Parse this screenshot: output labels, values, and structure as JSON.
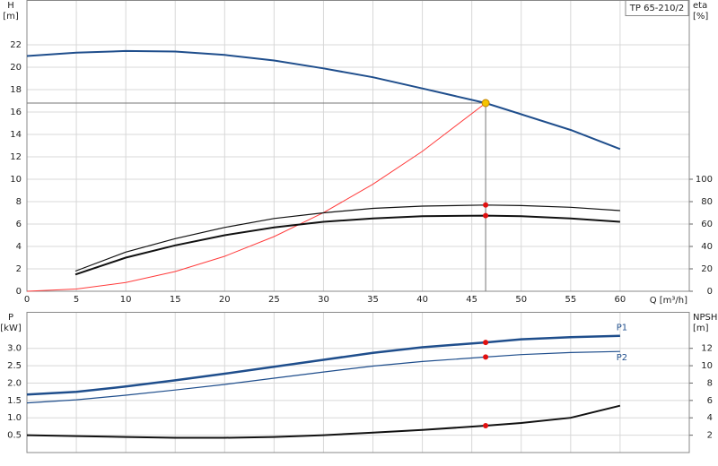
{
  "chart_data": [
    {
      "type": "line",
      "title": "TP 65-210/2",
      "y_label": [
        "H",
        "[m]"
      ],
      "y2_label": [
        "eta",
        "[%]"
      ],
      "x_label": "Q [m³/h]",
      "xlim": [
        0,
        67
      ],
      "xticks": [
        0,
        5,
        10,
        15,
        20,
        25,
        30,
        35,
        40,
        45,
        50,
        55,
        60
      ],
      "xtick_labels": true,
      "ylim": [
        0,
        26
      ],
      "yticks": [
        0,
        2,
        4,
        6,
        8,
        10,
        12,
        14,
        16,
        18,
        20,
        22
      ],
      "y2lim": [
        0,
        260
      ],
      "y2ticks": [
        0,
        20,
        40,
        60,
        80,
        100
      ],
      "grid": true,
      "series": [
        {
          "color": "#1f4e8c",
          "line_width": 2,
          "axis": "y",
          "x": [
            0,
            5,
            10,
            15,
            20,
            25,
            30,
            35,
            40,
            46.4,
            50,
            55,
            60
          ],
          "values": [
            21.0,
            21.3,
            21.45,
            21.4,
            21.1,
            20.6,
            19.9,
            19.1,
            18.1,
            16.8,
            15.8,
            14.4,
            12.7
          ]
        },
        {
          "color": "#ff3b3b",
          "line_width": 1,
          "axis": "y",
          "x": [
            0,
            5,
            10,
            15,
            20,
            25,
            30,
            35,
            40,
            46.4
          ],
          "values": [
            0,
            0.2,
            0.78,
            1.76,
            3.12,
            4.88,
            7.02,
            9.55,
            12.49,
            16.8
          ]
        },
        {
          "color": "#111111",
          "line_width": 1.2,
          "axis": "y2",
          "x": [
            4.9,
            10,
            15,
            20,
            25,
            30,
            35,
            40,
            46.4,
            50,
            55,
            60
          ],
          "values": [
            18,
            35,
            47,
            57,
            65,
            70,
            74,
            76,
            77,
            76.5,
            75,
            72
          ]
        },
        {
          "color": "#111111",
          "line_width": 2,
          "axis": "y2",
          "x": [
            4.9,
            10,
            15,
            20,
            25,
            30,
            35,
            40,
            46.4,
            50,
            55,
            60
          ],
          "values": [
            15,
            30,
            41,
            50,
            57,
            62,
            65,
            67,
            67.5,
            67,
            65,
            62
          ]
        }
      ],
      "markers": [
        {
          "x": 46.4,
          "y": 16.8,
          "axis": "y",
          "color": "#f5c400",
          "crosshair": true
        },
        {
          "x": 46.4,
          "y": 77,
          "axis": "y2",
          "color": "#e01010",
          "crosshair": false
        },
        {
          "x": 46.4,
          "y": 67.5,
          "axis": "y2",
          "color": "#e01010",
          "crosshair": false
        }
      ]
    },
    {
      "type": "line",
      "y_label": [
        "P",
        "[kW]"
      ],
      "y2_label": [
        "NPSH",
        "[m]"
      ],
      "xlim": [
        0,
        67
      ],
      "xticks": [
        0,
        5,
        10,
        15,
        20,
        25,
        30,
        35,
        40,
        45,
        50,
        55,
        60
      ],
      "xtick_labels": false,
      "ylim": [
        0,
        4.05
      ],
      "yticks": [
        0.5,
        {
          "value": 1,
          "label": "1.0"
        },
        1.5,
        {
          "value": 2,
          "label": "2.0"
        },
        2.5,
        {
          "value": 3,
          "label": "3.0"
        }
      ],
      "y2lim": [
        0,
        16.2
      ],
      "y2ticks": [
        2,
        4,
        6,
        8,
        10,
        12
      ],
      "grid": true,
      "series": [
        {
          "name": "P1",
          "label_pos": "above",
          "color": "#1f4e8c",
          "line_width": 2.5,
          "axis": "y",
          "x": [
            0,
            5,
            10,
            15,
            20,
            25,
            30,
            35,
            40,
            46.4,
            50,
            55,
            60
          ],
          "values": [
            1.67,
            1.75,
            1.9,
            2.08,
            2.27,
            2.47,
            2.67,
            2.87,
            3.03,
            3.17,
            3.26,
            3.32,
            3.36
          ]
        },
        {
          "name": "P2",
          "label_pos": "below",
          "color": "#1f4e8c",
          "line_width": 1.2,
          "axis": "y",
          "x": [
            0,
            5,
            10,
            15,
            20,
            25,
            30,
            35,
            40,
            46.4,
            50,
            55,
            60
          ],
          "values": [
            1.43,
            1.52,
            1.65,
            1.8,
            1.96,
            2.14,
            2.32,
            2.49,
            2.62,
            2.75,
            2.82,
            2.88,
            2.91
          ]
        },
        {
          "color": "#111111",
          "line_width": 2,
          "axis": "y2",
          "x": [
            0,
            5,
            10,
            15,
            20,
            25,
            30,
            35,
            40,
            46.4,
            50,
            55,
            60
          ],
          "values": [
            2.0,
            1.9,
            1.8,
            1.7,
            1.7,
            1.8,
            2.0,
            2.3,
            2.6,
            3.1,
            3.4,
            4.0,
            5.4
          ]
        }
      ],
      "markers": [
        {
          "x": 46.4,
          "y": 3.17,
          "axis": "y",
          "color": "#e01010",
          "crosshair": false
        },
        {
          "x": 46.4,
          "y": 2.75,
          "axis": "y",
          "color": "#e01010",
          "crosshair": false
        },
        {
          "x": 46.4,
          "y": 3.1,
          "axis": "y2",
          "color": "#e01010",
          "crosshair": false
        }
      ]
    }
  ]
}
